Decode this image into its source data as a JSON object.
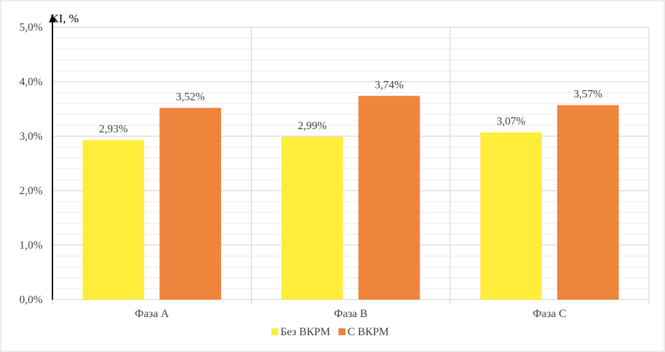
{
  "chart_data": {
    "type": "bar",
    "categories": [
      "Фаза A",
      "Фаза B",
      "Фаза C"
    ],
    "series": [
      {
        "name": "Без ВКРМ",
        "values": [
          2.93,
          2.99,
          3.07
        ],
        "labels": [
          "2,93%",
          "2,99%",
          "3,07%"
        ],
        "color": "#ffed3a"
      },
      {
        "name": "С ВКРМ",
        "values": [
          3.52,
          3.74,
          3.57
        ],
        "labels": [
          "3,52%",
          "3,74%",
          "3,57%"
        ],
        "color": "#ef843c"
      }
    ],
    "ylabel": "KI, %",
    "ylim": [
      0,
      5
    ],
    "yticks": [
      0,
      1,
      2,
      3,
      4,
      5
    ],
    "ytick_labels": [
      "0,0%",
      "1,0%",
      "2,0%",
      "3,0%",
      "4,0%",
      "5,0%"
    ],
    "minor_grid_step": 0.2,
    "grid": true,
    "legend": "bottom-center"
  }
}
